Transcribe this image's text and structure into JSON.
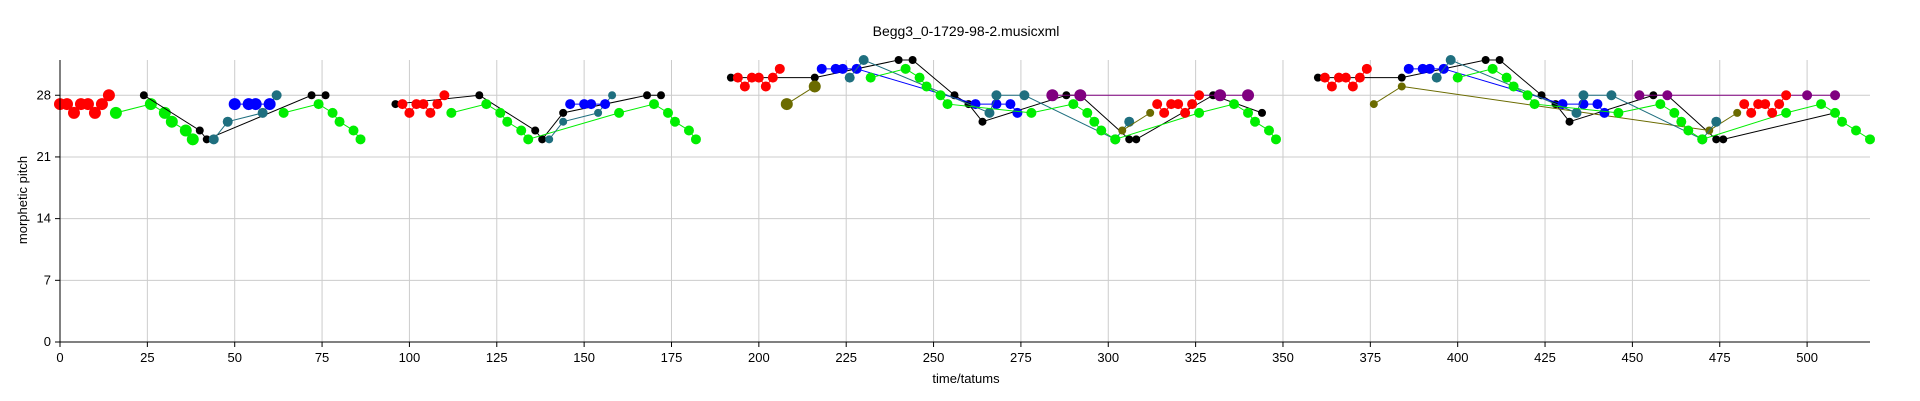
{
  "chart_data": {
    "type": "scatter",
    "title": "Begg3_0-1729-98-2.musicxml",
    "xlabel": "time/tatums",
    "ylabel": "morphetic pitch",
    "xlim": [
      0,
      518
    ],
    "ylim": [
      0,
      32
    ],
    "xticks": [
      0,
      25,
      50,
      75,
      100,
      125,
      150,
      175,
      200,
      225,
      250,
      275,
      300,
      325,
      350,
      375,
      400,
      425,
      450,
      475,
      500
    ],
    "yticks": [
      0,
      7,
      14,
      21,
      28
    ],
    "grid": true,
    "colors": {
      "red": "#ff0000",
      "green": "#00ee00",
      "black": "#000000",
      "blue": "#0000ff",
      "teal": "#1f6f7f",
      "olive": "#6b6b00",
      "purple": "#800080"
    },
    "series": [
      {
        "color": "red",
        "size": 6,
        "points": [
          [
            0,
            27
          ],
          [
            2,
            27
          ],
          [
            4,
            26
          ],
          [
            6,
            27
          ],
          [
            8,
            27
          ],
          [
            10,
            26
          ],
          [
            12,
            27
          ],
          [
            14,
            28
          ]
        ]
      },
      {
        "color": "green",
        "size": 6,
        "points": [
          [
            16,
            26
          ],
          [
            26,
            27
          ],
          [
            30,
            26
          ],
          [
            32,
            25
          ],
          [
            36,
            24
          ],
          [
            38,
            23
          ]
        ]
      },
      {
        "color": "black",
        "size": 4,
        "points": [
          [
            24,
            28
          ],
          [
            40,
            24
          ],
          [
            42,
            23
          ],
          [
            72,
            28
          ],
          [
            76,
            28
          ]
        ]
      },
      {
        "color": "teal",
        "size": 5,
        "points": [
          [
            44,
            23
          ],
          [
            48,
            25
          ],
          [
            58,
            26
          ],
          [
            62,
            28
          ]
        ]
      },
      {
        "color": "blue",
        "size": 6,
        "points": [
          [
            50,
            27
          ],
          [
            54,
            27
          ],
          [
            56,
            27
          ],
          [
            60,
            27
          ]
        ]
      },
      {
        "color": "green",
        "size": 5,
        "points": [
          [
            64,
            26
          ],
          [
            74,
            27
          ],
          [
            78,
            26
          ],
          [
            80,
            25
          ],
          [
            84,
            24
          ],
          [
            86,
            23
          ]
        ]
      },
      {
        "color": "black",
        "size": 4,
        "points": [
          [
            96,
            27
          ],
          [
            120,
            28
          ],
          [
            136,
            24
          ],
          [
            138,
            23
          ],
          [
            144,
            26
          ],
          [
            168,
            28
          ],
          [
            172,
            28
          ]
        ]
      },
      {
        "color": "red",
        "size": 5,
        "points": [
          [
            98,
            27
          ],
          [
            100,
            26
          ],
          [
            102,
            27
          ],
          [
            104,
            27
          ],
          [
            106,
            26
          ],
          [
            108,
            27
          ],
          [
            110,
            28
          ]
        ]
      },
      {
        "color": "green",
        "size": 5,
        "points": [
          [
            112,
            26
          ],
          [
            122,
            27
          ],
          [
            126,
            26
          ],
          [
            128,
            25
          ],
          [
            132,
            24
          ],
          [
            134,
            23
          ],
          [
            160,
            26
          ],
          [
            170,
            27
          ],
          [
            174,
            26
          ],
          [
            176,
            25
          ],
          [
            180,
            24
          ],
          [
            182,
            23
          ]
        ]
      },
      {
        "color": "teal",
        "size": 4,
        "points": [
          [
            140,
            23
          ],
          [
            144,
            25
          ],
          [
            154,
            26
          ],
          [
            158,
            28
          ]
        ]
      },
      {
        "color": "blue",
        "size": 5,
        "points": [
          [
            146,
            27
          ],
          [
            150,
            27
          ],
          [
            152,
            27
          ],
          [
            156,
            27
          ]
        ]
      },
      {
        "color": "black",
        "size": 4,
        "points": [
          [
            192,
            30
          ],
          [
            216,
            30
          ],
          [
            240,
            32
          ],
          [
            244,
            32
          ],
          [
            256,
            28
          ],
          [
            260,
            27
          ],
          [
            264,
            25
          ],
          [
            288,
            28
          ],
          [
            292,
            28
          ],
          [
            306,
            23
          ],
          [
            308,
            23
          ],
          [
            330,
            28
          ],
          [
            344,
            26
          ]
        ]
      },
      {
        "color": "red",
        "size": 5,
        "points": [
          [
            194,
            30
          ],
          [
            196,
            29
          ],
          [
            198,
            30
          ],
          [
            200,
            30
          ],
          [
            202,
            29
          ],
          [
            204,
            30
          ],
          [
            206,
            31
          ]
        ]
      },
      {
        "color": "olive",
        "size": 6,
        "points": [
          [
            208,
            27
          ],
          [
            216,
            29
          ]
        ]
      },
      {
        "color": "blue",
        "size": 5,
        "points": [
          [
            218,
            31
          ],
          [
            222,
            31
          ],
          [
            224,
            31
          ],
          [
            228,
            31
          ],
          [
            262,
            27
          ],
          [
            268,
            27
          ],
          [
            272,
            27
          ],
          [
            274,
            26
          ]
        ]
      },
      {
        "color": "teal",
        "size": 5,
        "points": [
          [
            226,
            30
          ],
          [
            230,
            32
          ],
          [
            266,
            26
          ],
          [
            268,
            28
          ],
          [
            276,
            28
          ],
          [
            302,
            23
          ],
          [
            306,
            25
          ]
        ]
      },
      {
        "color": "green",
        "size": 5,
        "points": [
          [
            232,
            30
          ],
          [
            242,
            31
          ],
          [
            246,
            30
          ],
          [
            248,
            29
          ],
          [
            252,
            28
          ],
          [
            254,
            27
          ],
          [
            278,
            26
          ],
          [
            290,
            27
          ],
          [
            294,
            26
          ],
          [
            296,
            25
          ],
          [
            298,
            24
          ],
          [
            302,
            23
          ],
          [
            326,
            26
          ],
          [
            336,
            27
          ],
          [
            340,
            26
          ],
          [
            342,
            25
          ],
          [
            346,
            24
          ],
          [
            348,
            23
          ]
        ]
      },
      {
        "color": "purple",
        "size": 6,
        "points": [
          [
            284,
            28
          ],
          [
            292,
            28
          ],
          [
            332,
            28
          ],
          [
            340,
            28
          ]
        ]
      },
      {
        "color": "olive",
        "size": 4,
        "points": [
          [
            304,
            24
          ],
          [
            312,
            26
          ]
        ]
      },
      {
        "color": "red",
        "size": 5,
        "points": [
          [
            314,
            27
          ],
          [
            316,
            26
          ],
          [
            318,
            27
          ],
          [
            320,
            27
          ],
          [
            322,
            26
          ],
          [
            324,
            27
          ],
          [
            326,
            28
          ]
        ]
      },
      {
        "color": "black",
        "size": 4,
        "points": [
          [
            360,
            30
          ],
          [
            384,
            30
          ],
          [
            408,
            32
          ],
          [
            412,
            32
          ],
          [
            424,
            28
          ],
          [
            428,
            27
          ],
          [
            432,
            25
          ],
          [
            456,
            28
          ],
          [
            460,
            28
          ],
          [
            474,
            23
          ],
          [
            476,
            23
          ],
          [
            508,
            26
          ]
        ]
      },
      {
        "color": "red",
        "size": 5,
        "points": [
          [
            362,
            30
          ],
          [
            364,
            29
          ],
          [
            366,
            30
          ],
          [
            368,
            30
          ],
          [
            370,
            29
          ],
          [
            372,
            30
          ],
          [
            374,
            31
          ]
        ]
      },
      {
        "color": "olive",
        "size": 4,
        "points": [
          [
            376,
            27
          ],
          [
            384,
            29
          ],
          [
            472,
            24
          ],
          [
            480,
            26
          ]
        ]
      },
      {
        "color": "blue",
        "size": 5,
        "points": [
          [
            386,
            31
          ],
          [
            390,
            31
          ],
          [
            392,
            31
          ],
          [
            396,
            31
          ],
          [
            430,
            27
          ],
          [
            436,
            27
          ],
          [
            440,
            27
          ],
          [
            442,
            26
          ]
        ]
      },
      {
        "color": "teal",
        "size": 5,
        "points": [
          [
            394,
            30
          ],
          [
            398,
            32
          ],
          [
            434,
            26
          ],
          [
            436,
            28
          ],
          [
            444,
            28
          ],
          [
            470,
            23
          ],
          [
            474,
            25
          ]
        ]
      },
      {
        "color": "green",
        "size": 5,
        "points": [
          [
            400,
            30
          ],
          [
            410,
            31
          ],
          [
            414,
            30
          ],
          [
            416,
            29
          ],
          [
            420,
            28
          ],
          [
            422,
            27
          ],
          [
            446,
            26
          ],
          [
            458,
            27
          ],
          [
            462,
            26
          ],
          [
            464,
            25
          ],
          [
            466,
            24
          ],
          [
            470,
            23
          ],
          [
            494,
            26
          ],
          [
            504,
            27
          ],
          [
            508,
            26
          ],
          [
            510,
            25
          ],
          [
            514,
            24
          ],
          [
            518,
            23
          ]
        ]
      },
      {
        "color": "purple",
        "size": 5,
        "points": [
          [
            452,
            28
          ],
          [
            460,
            28
          ],
          [
            500,
            28
          ],
          [
            508,
            28
          ]
        ]
      },
      {
        "color": "red",
        "size": 5,
        "points": [
          [
            482,
            27
          ],
          [
            484,
            26
          ],
          [
            486,
            27
          ],
          [
            488,
            27
          ],
          [
            490,
            26
          ],
          [
            492,
            27
          ],
          [
            494,
            28
          ]
        ]
      }
    ]
  }
}
